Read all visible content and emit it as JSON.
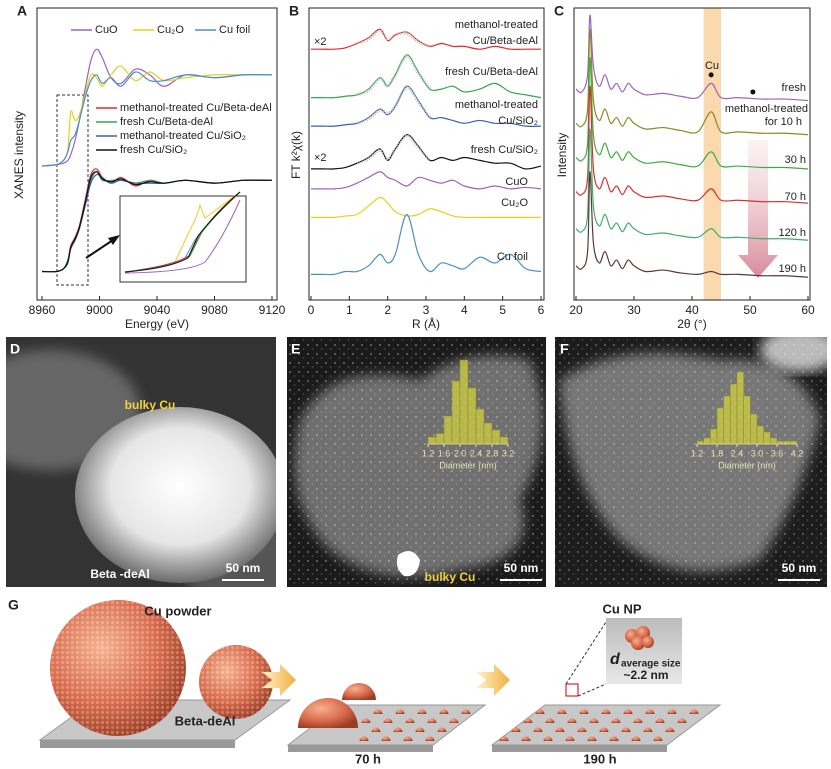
{
  "chart_data": [
    {
      "type": "line",
      "panel": "A",
      "xlabel": "Energy (eV)",
      "ylabel": "XANES intensity",
      "x": [
        8960,
        8970,
        8975,
        8978,
        8980,
        8983,
        8986,
        8990,
        8994,
        8998,
        9002,
        9008,
        9015,
        9025,
        9035,
        9045,
        9060,
        9080,
        9100,
        9120
      ],
      "xlim": [
        8960,
        9120
      ],
      "xticks": [
        8960,
        9000,
        9040,
        9080,
        9120
      ],
      "ylim": [
        0,
        10
      ],
      "series": [
        {
          "name": "CuO",
          "color": "#9b63c4",
          "values": [
            4.7,
            4.75,
            4.8,
            4.9,
            5.1,
            5.6,
            6.3,
            7.4,
            8.4,
            8.8,
            8.5,
            7.8,
            7.6,
            8.1,
            7.9,
            7.5,
            7.9,
            7.8,
            7.9,
            7.9
          ]
        },
        {
          "name": "Cu₂O",
          "color": "#e3d21c",
          "values": [
            4.7,
            4.75,
            4.9,
            5.3,
            6.6,
            6.3,
            6.5,
            7.2,
            7.9,
            7.8,
            7.5,
            7.9,
            8.2,
            7.7,
            8.0,
            7.7,
            7.8,
            7.9,
            7.9,
            7.9
          ]
        },
        {
          "name": "Cu foil",
          "color": "#4a90c8",
          "values": [
            4.7,
            4.75,
            4.9,
            5.2,
            5.6,
            5.8,
            6.3,
            7.1,
            7.7,
            7.9,
            7.6,
            7.8,
            7.5,
            8.0,
            7.7,
            7.7,
            7.9,
            7.8,
            7.9,
            7.9
          ]
        },
        {
          "name": "methanol-treated Cu/Beta-deAl",
          "color": "#e02a2a",
          "values": [
            1.0,
            1.0,
            1.1,
            1.4,
            1.9,
            2.2,
            2.6,
            3.5,
            4.4,
            4.6,
            4.3,
            4.1,
            4.3,
            4.0,
            4.2,
            4.1,
            4.2,
            4.1,
            4.2,
            4.2
          ]
        },
        {
          "name": "fresh Cu/Beta-deAl",
          "color": "#2fa84f",
          "values": [
            1.0,
            1.0,
            1.1,
            1.4,
            1.8,
            2.1,
            2.5,
            3.4,
            4.2,
            4.5,
            4.2,
            4.2,
            4.2,
            4.1,
            4.2,
            4.1,
            4.2,
            4.1,
            4.2,
            4.2
          ]
        },
        {
          "name": "methanol-treated Cu/SiO₂",
          "color": "#3a5fb0",
          "values": [
            1.0,
            1.0,
            1.1,
            1.3,
            1.8,
            2.1,
            2.5,
            3.3,
            4.1,
            4.4,
            4.3,
            4.1,
            4.2,
            4.1,
            4.1,
            4.1,
            4.2,
            4.1,
            4.2,
            4.2
          ]
        },
        {
          "name": "fresh Cu/SiO₂",
          "color": "#111111",
          "values": [
            1.0,
            1.0,
            1.1,
            1.35,
            1.85,
            2.15,
            2.55,
            3.4,
            4.3,
            4.5,
            4.25,
            4.15,
            4.25,
            4.05,
            4.15,
            4.1,
            4.2,
            4.1,
            4.2,
            4.2
          ]
        }
      ]
    },
    {
      "type": "line",
      "panel": "B",
      "xlabel": "R (Å)",
      "ylabel": "FT k²χ(k)",
      "x": [
        0,
        0.3,
        0.6,
        0.9,
        1.2,
        1.5,
        1.8,
        2.0,
        2.2,
        2.5,
        2.8,
        3.1,
        3.4,
        3.7,
        4.0,
        4.4,
        4.8,
        5.2,
        5.6,
        6.0
      ],
      "xlim": [
        0,
        6
      ],
      "xticks": [
        0,
        1,
        2,
        3,
        4,
        5,
        6
      ],
      "ylim": [
        0,
        10
      ],
      "annotations": [
        "×2",
        "×2"
      ],
      "series": [
        {
          "label": [
            "methanol-treated",
            "Cu/Beta-deAl"
          ],
          "color": "#e02a2a",
          "values": [
            8.8,
            8.8,
            8.8,
            8.85,
            9.0,
            9.2,
            9.5,
            9.1,
            9.3,
            9.4,
            9.1,
            8.9,
            9.0,
            8.9,
            8.9,
            8.8,
            8.9,
            8.8,
            8.8,
            8.8
          ]
        },
        {
          "label": [
            "fresh Cu/Beta-deAl"
          ],
          "color": "#2fa84f",
          "values": [
            7.1,
            7.1,
            7.1,
            7.15,
            7.2,
            7.4,
            7.8,
            7.5,
            7.9,
            8.6,
            8.0,
            7.4,
            7.4,
            7.5,
            7.3,
            7.4,
            7.6,
            7.3,
            7.2,
            7.1
          ]
        },
        {
          "label": [
            "methanol-treated",
            "Cu/SiO₂"
          ],
          "color": "#3a5fb0",
          "values": [
            6.1,
            6.1,
            6.1,
            6.15,
            6.2,
            6.4,
            6.7,
            6.5,
            6.8,
            7.5,
            7.0,
            6.4,
            6.4,
            6.3,
            6.2,
            6.3,
            6.2,
            6.2,
            6.1,
            6.1
          ]
        },
        {
          "label": [
            "fresh Cu/SiO₂"
          ],
          "color": "#111111",
          "values": [
            4.6,
            4.6,
            4.6,
            4.65,
            4.8,
            5.0,
            5.3,
            4.9,
            5.3,
            5.8,
            5.4,
            4.9,
            5.0,
            4.9,
            5.0,
            4.9,
            4.8,
            4.8,
            4.6,
            4.7
          ]
        },
        {
          "label": [
            "CuO"
          ],
          "color": "#9b63c4",
          "values": [
            3.9,
            3.9,
            3.9,
            3.95,
            4.1,
            4.3,
            4.5,
            4.3,
            4.2,
            4.0,
            4.3,
            4.2,
            4.1,
            4.2,
            4.0,
            3.9,
            4.0,
            3.9,
            3.95,
            3.9
          ]
        },
        {
          "label": [
            "Cu₂O"
          ],
          "color": "#e3d21c",
          "values": [
            2.9,
            2.9,
            2.9,
            2.95,
            3.0,
            3.3,
            3.6,
            3.4,
            3.1,
            2.95,
            3.0,
            3.2,
            3.1,
            2.95,
            2.9,
            2.9,
            2.9,
            2.9,
            2.9,
            2.9
          ]
        },
        {
          "label": [
            "Cu foil"
          ],
          "color": "#4a90c8",
          "values": [
            0.9,
            0.9,
            0.9,
            1.0,
            1.0,
            1.2,
            1.6,
            1.3,
            1.6,
            3.0,
            1.6,
            1.0,
            1.3,
            1.2,
            1.1,
            1.5,
            1.3,
            1.6,
            1.1,
            1.0
          ]
        },
        {
          "color": "#b8b8b8",
          "values": [
            null,
            null,
            null,
            null,
            9.0,
            9.15,
            9.45,
            9.15,
            9.3,
            9.35,
            9.05,
            8.9,
            null,
            null,
            null,
            null,
            null,
            null,
            null,
            null
          ]
        },
        {
          "color": "#b8b8b8",
          "values": [
            null,
            null,
            null,
            null,
            7.2,
            7.35,
            7.75,
            7.55,
            7.9,
            8.55,
            7.95,
            7.4,
            null,
            null,
            null,
            null,
            null,
            null,
            null,
            null
          ]
        },
        {
          "color": "#b8b8b8",
          "values": [
            null,
            null,
            null,
            null,
            6.2,
            6.35,
            6.65,
            6.55,
            6.8,
            7.45,
            6.95,
            6.4,
            null,
            null,
            null,
            null,
            null,
            null,
            null,
            null
          ]
        },
        {
          "color": "#b8b8b8",
          "values": [
            null,
            null,
            null,
            null,
            4.8,
            4.95,
            5.25,
            4.95,
            5.3,
            5.75,
            5.35,
            4.9,
            null,
            null,
            null,
            null,
            null,
            null,
            null,
            null
          ]
        }
      ]
    },
    {
      "type": "line",
      "panel": "C",
      "xlabel": "2θ (°)",
      "ylabel": "Intensity",
      "x": [
        20,
        21,
        22,
        22.4,
        23,
        24,
        25,
        26,
        27,
        28,
        29,
        30,
        32,
        35,
        38,
        41,
        43.3,
        45,
        48,
        52,
        56,
        60
      ],
      "xlim": [
        20,
        60
      ],
      "xticks": [
        20,
        30,
        40,
        50,
        60
      ],
      "ylim": [
        0,
        10
      ],
      "highlight": [
        42,
        45
      ],
      "annotations": [
        "Cu"
      ],
      "markers": [
        {
          "x": 43.3,
          "y": 7.9
        },
        {
          "x": 50.5,
          "y": 7.3
        }
      ],
      "series": [
        {
          "label": [
            "fresh"
          ],
          "color": "#9b63c4",
          "values": [
            7.4,
            7.3,
            7.9,
            10,
            8.2,
            7.5,
            7.9,
            7.4,
            7.6,
            7.3,
            7.6,
            7.4,
            7.2,
            7.25,
            7.15,
            7.1,
            7.6,
            7.1,
            7.1,
            7.05,
            7.05,
            7.0
          ]
        },
        {
          "label": [
            "methanol-treated",
            "for 10 h"
          ],
          "color": "#8a8a22",
          "values": [
            6.2,
            6.1,
            6.7,
            9.5,
            7.0,
            6.3,
            6.7,
            6.2,
            6.4,
            6.1,
            6.4,
            6.2,
            6.0,
            6.05,
            5.95,
            5.9,
            6.6,
            5.9,
            5.9,
            5.85,
            5.85,
            5.8
          ]
        },
        {
          "label": [
            "30 h"
          ],
          "color": "#3dae3d",
          "values": [
            5.0,
            4.9,
            5.5,
            8.5,
            5.8,
            5.1,
            5.5,
            5.0,
            5.2,
            4.9,
            5.2,
            5.0,
            4.8,
            4.85,
            4.75,
            4.7,
            5.2,
            4.7,
            4.7,
            4.65,
            4.65,
            4.6
          ]
        },
        {
          "label": [
            "70 h"
          ],
          "color": "#d83030",
          "values": [
            3.8,
            3.7,
            4.3,
            7.5,
            4.6,
            3.9,
            4.3,
            3.8,
            4.0,
            3.7,
            4.0,
            3.8,
            3.6,
            3.65,
            3.55,
            3.5,
            3.9,
            3.5,
            3.5,
            3.45,
            3.45,
            3.4
          ]
        },
        {
          "label": [
            "120 h"
          ],
          "color": "#3fae6a",
          "values": [
            2.5,
            2.4,
            3.0,
            6.0,
            3.3,
            2.6,
            3.0,
            2.5,
            2.7,
            2.4,
            2.7,
            2.5,
            2.3,
            2.35,
            2.25,
            2.2,
            2.5,
            2.2,
            2.2,
            2.15,
            2.15,
            2.1
          ]
        },
        {
          "label": [
            "190 h"
          ],
          "color": "#5a3838",
          "values": [
            1.2,
            1.1,
            1.7,
            4.5,
            2.0,
            1.3,
            1.7,
            1.2,
            1.4,
            1.1,
            1.4,
            1.2,
            1.0,
            1.05,
            0.95,
            0.9,
            1.0,
            0.9,
            0.9,
            0.85,
            0.85,
            0.8
          ]
        }
      ]
    },
    {
      "type": "histogram",
      "xlabel": "Diameter (nm)",
      "color": "#d0d040",
      "bins": [
        1.2,
        1.4,
        1.6,
        1.8,
        2.0,
        2.2,
        2.4,
        2.6,
        2.8,
        3.0,
        3.2
      ],
      "counts": [
        1,
        1.5,
        4,
        9,
        12,
        8,
        5,
        3,
        2,
        1
      ],
      "xlim": [
        1.2,
        3.2
      ],
      "xticks": [
        1.2,
        1.6,
        {
          "value": 2,
          "label": "2.0"
        },
        2.4,
        2.8,
        3.2
      ],
      "ylim": [
        0,
        12
      ]
    },
    {
      "type": "histogram",
      "xlabel": "Diameter (nm)",
      "color": "#d0d040",
      "bins": [
        1.2,
        1.4,
        1.6,
        1.8,
        2.0,
        2.2,
        2.4,
        2.6,
        2.8,
        3.0,
        3.2,
        3.4,
        3.6,
        3.8,
        4.0,
        4.2
      ],
      "counts": [
        0.5,
        1,
        2.5,
        6,
        8,
        10,
        12,
        8,
        5,
        3,
        2,
        1,
        0.5,
        0.5,
        0.5
      ],
      "xlim": [
        1.2,
        4.2
      ],
      "xticks": [
        1.2,
        1.8,
        2.4,
        {
          "value": 3,
          "label": "3.0"
        },
        3.6,
        4.2
      ],
      "ylim": [
        0,
        12
      ]
    }
  ],
  "micrographs": [
    {
      "panel": "D",
      "labels": [
        "bulky Cu",
        "Beta -deAl"
      ],
      "scale_bar": "50 nm"
    },
    {
      "panel": "E",
      "labels": [
        "bulky Cu"
      ],
      "scale_bar": "50 nm"
    },
    {
      "panel": "F",
      "scale_bar": "50 nm"
    }
  ],
  "schematic": {
    "panel": "G",
    "cu_powder": "Cu powder",
    "support": "Beta-deAl",
    "stages": [
      "70 h",
      "190 h"
    ],
    "cu_np": "Cu NP",
    "size_symbol": "d",
    "size_subscript": "average size",
    "size_value": "~2.2 nm"
  }
}
